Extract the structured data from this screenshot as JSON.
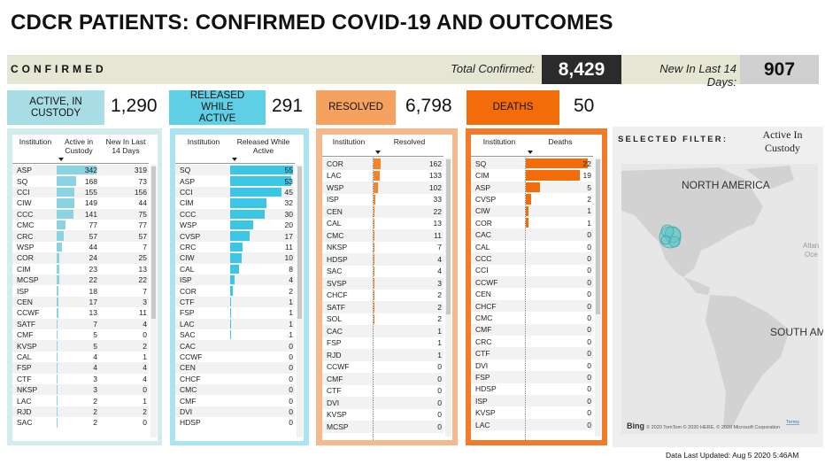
{
  "title": "CDCR PATIENTS: CONFIRMED COVID-19 AND OUTCOMES",
  "header": {
    "label": "CONFIRMED",
    "total_label": "Total Confirmed:",
    "total": "8,429",
    "new_label": "New In Last 14 Days:",
    "new": "907"
  },
  "cards": [
    {
      "label": "ACTIVE, IN CUSTODY",
      "value": "1,290"
    },
    {
      "label": "RELEASED WHILE ACTIVE",
      "value": "291"
    },
    {
      "label": "RESOLVED",
      "value": "6,798"
    },
    {
      "label": "DEATHS",
      "value": "50"
    }
  ],
  "tables": [
    {
      "headers": [
        "Institution",
        "Active in Custody",
        "New In Last 14 Days"
      ],
      "rows": [
        [
          "ASP",
          342,
          319
        ],
        [
          "SQ",
          168,
          73
        ],
        [
          "CCI",
          155,
          156
        ],
        [
          "CIW",
          149,
          44
        ],
        [
          "CCC",
          141,
          75
        ],
        [
          "CMC",
          77,
          77
        ],
        [
          "CRC",
          57,
          57
        ],
        [
          "WSP",
          44,
          7
        ],
        [
          "COR",
          24,
          25
        ],
        [
          "CIM",
          23,
          13
        ],
        [
          "MCSP",
          22,
          22
        ],
        [
          "ISP",
          18,
          7
        ],
        [
          "CEN",
          17,
          3
        ],
        [
          "CCWF",
          13,
          11
        ],
        [
          "SATF",
          7,
          4
        ],
        [
          "CMF",
          5,
          0
        ],
        [
          "KVSP",
          5,
          2
        ],
        [
          "CAL",
          4,
          1
        ],
        [
          "FSP",
          4,
          4
        ],
        [
          "CTF",
          3,
          4
        ],
        [
          "NKSP",
          3,
          0
        ],
        [
          "LAC",
          2,
          1
        ],
        [
          "RJD",
          2,
          2
        ],
        [
          "SAC",
          2,
          0
        ]
      ]
    },
    {
      "headers": [
        "Institution",
        "Released While Active"
      ],
      "rows": [
        [
          "SQ",
          55
        ],
        [
          "ASP",
          53
        ],
        [
          "CCI",
          45
        ],
        [
          "CIM",
          32
        ],
        [
          "CCC",
          30
        ],
        [
          "WSP",
          20
        ],
        [
          "CVSP",
          17
        ],
        [
          "CRC",
          11
        ],
        [
          "CIW",
          10
        ],
        [
          "CAL",
          8
        ],
        [
          "ISP",
          4
        ],
        [
          "COR",
          2
        ],
        [
          "CTF",
          1
        ],
        [
          "FSP",
          1
        ],
        [
          "LAC",
          1
        ],
        [
          "SAC",
          1
        ],
        [
          "CAC",
          0
        ],
        [
          "CCWF",
          0
        ],
        [
          "CEN",
          0
        ],
        [
          "CHCF",
          0
        ],
        [
          "CMC",
          0
        ],
        [
          "CMF",
          0
        ],
        [
          "DVI",
          0
        ],
        [
          "HDSP",
          0
        ]
      ]
    },
    {
      "headers": [
        "Institution",
        "Resolved"
      ],
      "rows": [
        [
          "COR",
          162
        ],
        [
          "LAC",
          133
        ],
        [
          "WSP",
          102
        ],
        [
          "ISP",
          33
        ],
        [
          "CEN",
          22
        ],
        [
          "CAL",
          13
        ],
        [
          "CMC",
          11
        ],
        [
          "NKSP",
          7
        ],
        [
          "HDSP",
          4
        ],
        [
          "SAC",
          4
        ],
        [
          "SVSP",
          3
        ],
        [
          "CHCF",
          2
        ],
        [
          "SATF",
          2
        ],
        [
          "SOL",
          2
        ],
        [
          "CAC",
          1
        ],
        [
          "FSP",
          1
        ],
        [
          "RJD",
          1
        ],
        [
          "CCWF",
          0
        ],
        [
          "CMF",
          0
        ],
        [
          "CTF",
          0
        ],
        [
          "DVI",
          0
        ],
        [
          "KVSP",
          0
        ],
        [
          "MCSP",
          0
        ]
      ]
    },
    {
      "headers": [
        "Institution",
        "Deaths"
      ],
      "rows": [
        [
          "SQ",
          22
        ],
        [
          "CIM",
          19
        ],
        [
          "ASP",
          5
        ],
        [
          "CVSP",
          2
        ],
        [
          "CIW",
          1
        ],
        [
          "COR",
          1
        ],
        [
          "CAC",
          0
        ],
        [
          "CAL",
          0
        ],
        [
          "CCC",
          0
        ],
        [
          "CCI",
          0
        ],
        [
          "CCWF",
          0
        ],
        [
          "CEN",
          0
        ],
        [
          "CHCF",
          0
        ],
        [
          "CMC",
          0
        ],
        [
          "CMF",
          0
        ],
        [
          "CRC",
          0
        ],
        [
          "CTF",
          0
        ],
        [
          "DVI",
          0
        ],
        [
          "FSP",
          0
        ],
        [
          "HDSP",
          0
        ],
        [
          "ISP",
          0
        ],
        [
          "KVSP",
          0
        ],
        [
          "LAC",
          0
        ]
      ]
    }
  ],
  "map": {
    "filter_label": "SELECTED FILTER:",
    "filter_value": "Active In Custody",
    "north": "NORTH AMERICA",
    "south": "SOUTH AMERICA",
    "ocean1": "Atlan",
    "ocean2": "Oce",
    "logo": "Bing",
    "attribution": "© 2020 TomTom © 2020 HERE, © 2020 Microsoft Corporation",
    "terms": "Terms"
  },
  "footer": "Data Last Updated: Aug 5 2020 5:46AM"
}
